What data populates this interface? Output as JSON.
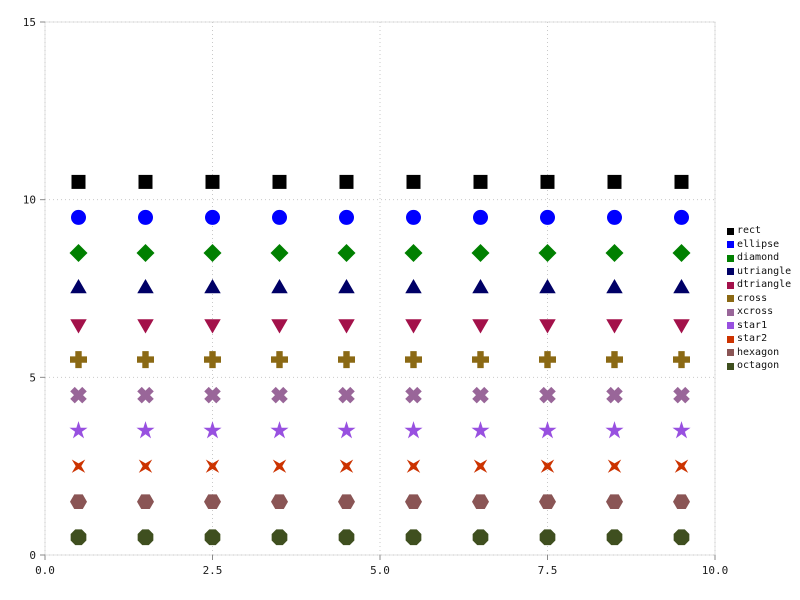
{
  "figure": {
    "background": "#ffffff",
    "legend_title": ""
  },
  "chart_data": {
    "type": "scatter",
    "title": "",
    "xlabel": "",
    "ylabel": "",
    "xlim": [
      0,
      10
    ],
    "ylim": [
      0,
      15
    ],
    "x_ticks": [
      0,
      2.5,
      5,
      7.5,
      10
    ],
    "x_tick_labels": [
      "0.0",
      "2.5",
      "5.0",
      "7.5",
      "10.0"
    ],
    "y_ticks": [
      0,
      5,
      10,
      15
    ],
    "y_tick_labels": [
      "0",
      "5",
      "10",
      "15"
    ],
    "grid": "dotted",
    "legend_position": "right-outside",
    "x": [
      0.5,
      1.5,
      2.5,
      3.5,
      4.5,
      5.5,
      6.5,
      7.5,
      8.5,
      9.5
    ],
    "series": [
      {
        "name": "rect",
        "marker": "rect",
        "color": "#000000",
        "y": 10.5
      },
      {
        "name": "ellipse",
        "marker": "ellipse",
        "color": "#0000ff",
        "y": 9.5
      },
      {
        "name": "diamond",
        "marker": "diamond",
        "color": "#008000",
        "y": 8.5
      },
      {
        "name": "utriangle",
        "marker": "utriangle",
        "color": "#000066",
        "y": 7.5
      },
      {
        "name": "dtriangle",
        "marker": "dtriangle",
        "color": "#a3114a",
        "y": 6.5
      },
      {
        "name": "cross",
        "marker": "cross",
        "color": "#8b6914",
        "y": 5.5
      },
      {
        "name": "xcross",
        "marker": "xcross",
        "color": "#996699",
        "y": 4.5
      },
      {
        "name": "star1",
        "marker": "star1",
        "color": "#9850e0",
        "y": 3.5
      },
      {
        "name": "star2",
        "marker": "star2",
        "color": "#cc3300",
        "y": 2.5
      },
      {
        "name": "hexagon",
        "marker": "hexagon",
        "color": "#8a5555",
        "y": 1.5
      },
      {
        "name": "octagon",
        "marker": "octagon",
        "color": "#3f4f1f",
        "y": 0.5
      }
    ]
  }
}
